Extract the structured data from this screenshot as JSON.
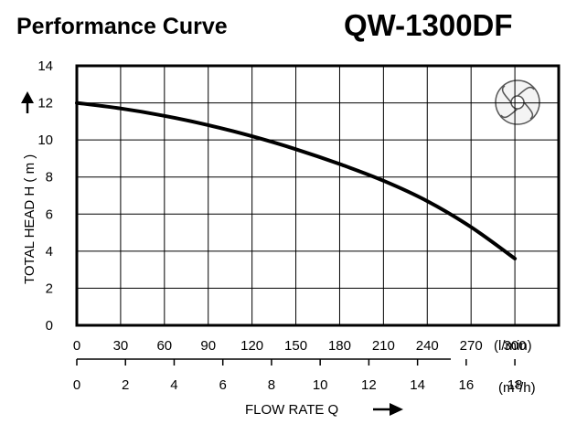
{
  "header": {
    "title": "Performance Curve",
    "model": "QW-1300DF"
  },
  "chart_data": {
    "type": "line",
    "ylabel": "TOTAL HEAD H ( m )",
    "xlabel": "FLOW RATE Q",
    "x_unit_primary": "(l/min)",
    "x_unit_secondary_prefix": "(m",
    "x_unit_secondary_sup": "3",
    "x_unit_secondary_suffix": "/h)",
    "ylim": [
      0,
      14
    ],
    "xlim": [
      0,
      330
    ],
    "y_ticks": [
      0,
      2,
      4,
      6,
      8,
      10,
      12,
      14
    ],
    "x_ticks_lmin": [
      0,
      30,
      60,
      90,
      120,
      150,
      180,
      210,
      240,
      270,
      300
    ],
    "x_ticks_m3h": [
      0,
      2,
      4,
      6,
      8,
      10,
      12,
      14,
      16,
      18
    ],
    "grid": true,
    "series": [
      {
        "x": [
          0,
          30,
          60,
          90,
          120,
          150,
          180,
          210,
          240,
          270,
          300
        ],
        "values": [
          12.0,
          11.7,
          11.3,
          10.8,
          10.2,
          9.5,
          8.7,
          7.8,
          6.7,
          5.3,
          3.6
        ]
      }
    ]
  }
}
